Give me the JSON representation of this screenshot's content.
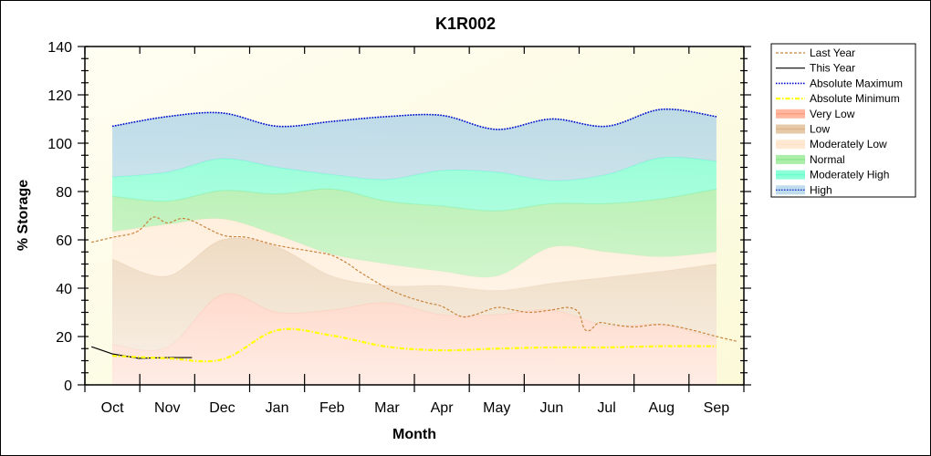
{
  "chart_data": {
    "type": "area",
    "title": "K1R002",
    "xlabel": "Month",
    "ylabel": "% Storage",
    "ylim": [
      0,
      140
    ],
    "yticks": [
      0,
      20,
      40,
      60,
      80,
      100,
      120,
      140
    ],
    "xlim": [
      0,
      12
    ],
    "categories": [
      "Oct",
      "Nov",
      "Dec",
      "Jan",
      "Feb",
      "Mar",
      "Apr",
      "May",
      "Jun",
      "Jul",
      "Aug",
      "Sep"
    ],
    "band_x": [
      0.5,
      1.5,
      2.5,
      3.5,
      4.5,
      5.5,
      6.5,
      7.5,
      8.5,
      9.5,
      10.5,
      11.5
    ],
    "bands": [
      {
        "name": "Very Low",
        "color": "#ff9f80",
        "lower": [
          0,
          0,
          0,
          0,
          0,
          0,
          0,
          0,
          0,
          0,
          0,
          0
        ],
        "upper": [
          16.6,
          15.5,
          37.4,
          30,
          31,
          34,
          29,
          29,
          31,
          24.5,
          25,
          19
        ]
      },
      {
        "name": "Low",
        "color": "#ddb78c",
        "lower": [
          16.6,
          15.5,
          37.4,
          30,
          31,
          34,
          29,
          29,
          31,
          24.5,
          25,
          19
        ],
        "upper": [
          52,
          45,
          60,
          57,
          45,
          41,
          41,
          39,
          42,
          44.5,
          47,
          50
        ]
      },
      {
        "name": "Moderately Low",
        "color": "#ffe2c6",
        "lower": [
          52,
          45,
          60,
          57,
          45,
          41,
          41,
          39,
          42,
          44.5,
          47,
          50
        ],
        "upper": [
          63.4,
          66.4,
          68.7,
          62,
          54,
          50,
          47,
          45,
          57,
          55,
          53,
          55
        ]
      },
      {
        "name": "Normal",
        "color": "#8de88d",
        "lower": [
          63.4,
          66.4,
          68.7,
          62,
          54,
          50,
          47,
          45,
          57,
          55,
          53,
          55
        ],
        "upper": [
          78,
          76,
          80.4,
          79,
          81,
          76,
          74,
          72,
          75,
          75,
          77,
          81
        ]
      },
      {
        "name": "Moderately High",
        "color": "#66ffcc",
        "lower": [
          78,
          76,
          80.4,
          79,
          81,
          76,
          74,
          72,
          75,
          75,
          77,
          81
        ],
        "upper": [
          86,
          88,
          93.6,
          90,
          87,
          85,
          88.7,
          88,
          84.5,
          87,
          94,
          92.5
        ]
      },
      {
        "name": "High",
        "color": "#a8d0e6",
        "lower": [
          86,
          88,
          93.6,
          90,
          87,
          85,
          88.7,
          88,
          84.5,
          87,
          94,
          92.5
        ],
        "upper": [
          107,
          111,
          112.5,
          107,
          109,
          111,
          111.5,
          105.7,
          110,
          107,
          114,
          111
        ]
      }
    ],
    "series": [
      {
        "name": "Last Year",
        "color": "#c8843c",
        "style": "dashed",
        "x": [
          0.12,
          0.5,
          0.95,
          1.25,
          1.5,
          1.85,
          2.5,
          2.95,
          3.5,
          4.2,
          4.5,
          4.8,
          5.0,
          5.5,
          5.85,
          6.23,
          6.5,
          6.85,
          7.1,
          7.5,
          7.8,
          8.1,
          8.5,
          8.8,
          8.99,
          9.09,
          9.2,
          9.36,
          9.6,
          10.0,
          10.5,
          11.0,
          11.5,
          11.88
        ],
        "y": [
          59,
          61,
          63.4,
          69.4,
          67,
          68.7,
          62,
          61,
          57.7,
          55,
          53.6,
          50,
          46.8,
          40,
          36.6,
          34,
          32.5,
          28.3,
          29,
          32,
          31,
          30,
          31,
          32,
          30,
          23.4,
          22.6,
          25.7,
          25,
          24,
          25,
          23,
          20,
          18
        ]
      },
      {
        "name": "This Year",
        "color": "#000000",
        "style": "solid",
        "x": [
          0.12,
          0.5,
          0.98,
          1.5,
          1.95
        ],
        "y": [
          15.8,
          12.8,
          11,
          11.3,
          11.3
        ]
      },
      {
        "name": "Absolute Maximum",
        "color": "#0000cc",
        "style": "dotted",
        "x": [
          0.5,
          1.5,
          2.5,
          3.5,
          4.5,
          5.5,
          6.5,
          7.5,
          8.5,
          9.5,
          10.5,
          11.5
        ],
        "y": [
          107,
          111,
          112.5,
          107,
          109,
          111,
          111.5,
          105.7,
          110,
          107,
          114,
          111
        ]
      },
      {
        "name": "Absolute Minimum",
        "color": "#ffff00",
        "style": "dashdot",
        "x": [
          0.5,
          1.5,
          2.5,
          3.5,
          4.5,
          5.5,
          6.5,
          7.5,
          8.5,
          9.5,
          10.5,
          11.5
        ],
        "y": [
          12,
          11,
          10.5,
          22.6,
          20.4,
          15.8,
          14.3,
          15,
          15.5,
          15.5,
          16,
          16
        ]
      }
    ],
    "legend": [
      "Last Year",
      "This Year",
      "Absolute Maximum",
      "Absolute Minimum",
      "Very Low",
      "Low",
      "Moderately Low",
      "Normal",
      "Moderately High",
      "High"
    ],
    "legend_position": "right",
    "grid": false
  }
}
